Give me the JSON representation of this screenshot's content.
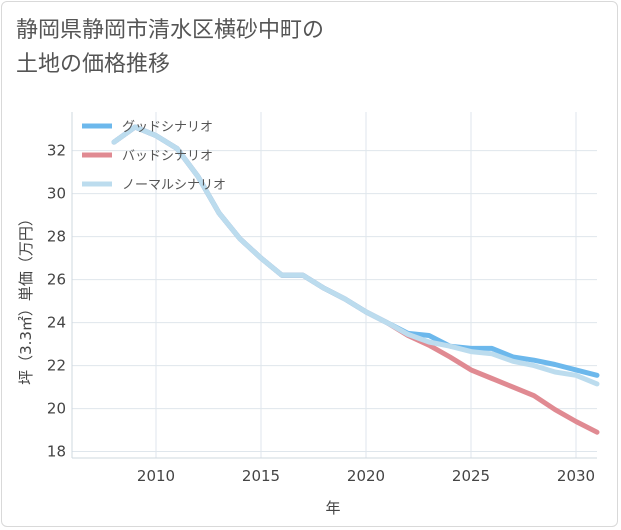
{
  "title": "静岡県静岡市清水区横砂中町の\n土地の価格推移",
  "chart_data": {
    "type": "line",
    "xlabel": "年",
    "ylabel": "坪（3.3㎡）単価（万円）",
    "xlim": [
      2006,
      2031
    ],
    "ylim": [
      17.7,
      33.8
    ],
    "xticks": [
      2010,
      2015,
      2020,
      2025,
      2030
    ],
    "yticks": [
      18,
      20,
      22,
      24,
      26,
      28,
      30,
      32
    ],
    "grid": true,
    "legend_position": "top-left",
    "series": [
      {
        "name": "グッドシナリオ",
        "color": "#6cb8ec",
        "x": [
          2008,
          2009,
          2010,
          2011,
          2012,
          2013,
          2014,
          2015,
          2016,
          2017,
          2018,
          2019,
          2020,
          2021,
          2022,
          2023,
          2024,
          2025,
          2026,
          2027,
          2028,
          2029,
          2030,
          2031
        ],
        "values": [
          32.4,
          33.1,
          32.7,
          32.1,
          30.8,
          29.1,
          27.9,
          27.0,
          26.2,
          26.2,
          25.6,
          25.1,
          24.5,
          24.0,
          23.5,
          23.4,
          22.9,
          22.8,
          22.8,
          22.4,
          22.25,
          22.05,
          21.8,
          21.55
        ]
      },
      {
        "name": "バッドシナリオ",
        "color": "#e08a92",
        "x": [
          2008,
          2009,
          2010,
          2011,
          2012,
          2013,
          2014,
          2015,
          2016,
          2017,
          2018,
          2019,
          2020,
          2021,
          2022,
          2023,
          2024,
          2025,
          2026,
          2027,
          2028,
          2029,
          2030,
          2031
        ],
        "values": [
          32.4,
          33.1,
          32.7,
          32.1,
          30.8,
          29.1,
          27.9,
          27.0,
          26.2,
          26.2,
          25.6,
          25.1,
          24.5,
          24.0,
          23.4,
          22.95,
          22.4,
          21.8,
          21.4,
          21.0,
          20.6,
          19.95,
          19.4,
          18.9
        ]
      },
      {
        "name": "ノーマルシナリオ",
        "color": "#bcdcee",
        "x": [
          2008,
          2009,
          2010,
          2011,
          2012,
          2013,
          2014,
          2015,
          2016,
          2017,
          2018,
          2019,
          2020,
          2021,
          2022,
          2023,
          2024,
          2025,
          2026,
          2027,
          2028,
          2029,
          2030,
          2031
        ],
        "values": [
          32.4,
          33.1,
          32.7,
          32.1,
          30.8,
          29.1,
          27.9,
          27.0,
          26.2,
          26.2,
          25.6,
          25.1,
          24.5,
          24.0,
          23.45,
          23.1,
          22.9,
          22.65,
          22.55,
          22.2,
          22.0,
          21.7,
          21.55,
          21.15
        ]
      }
    ]
  }
}
